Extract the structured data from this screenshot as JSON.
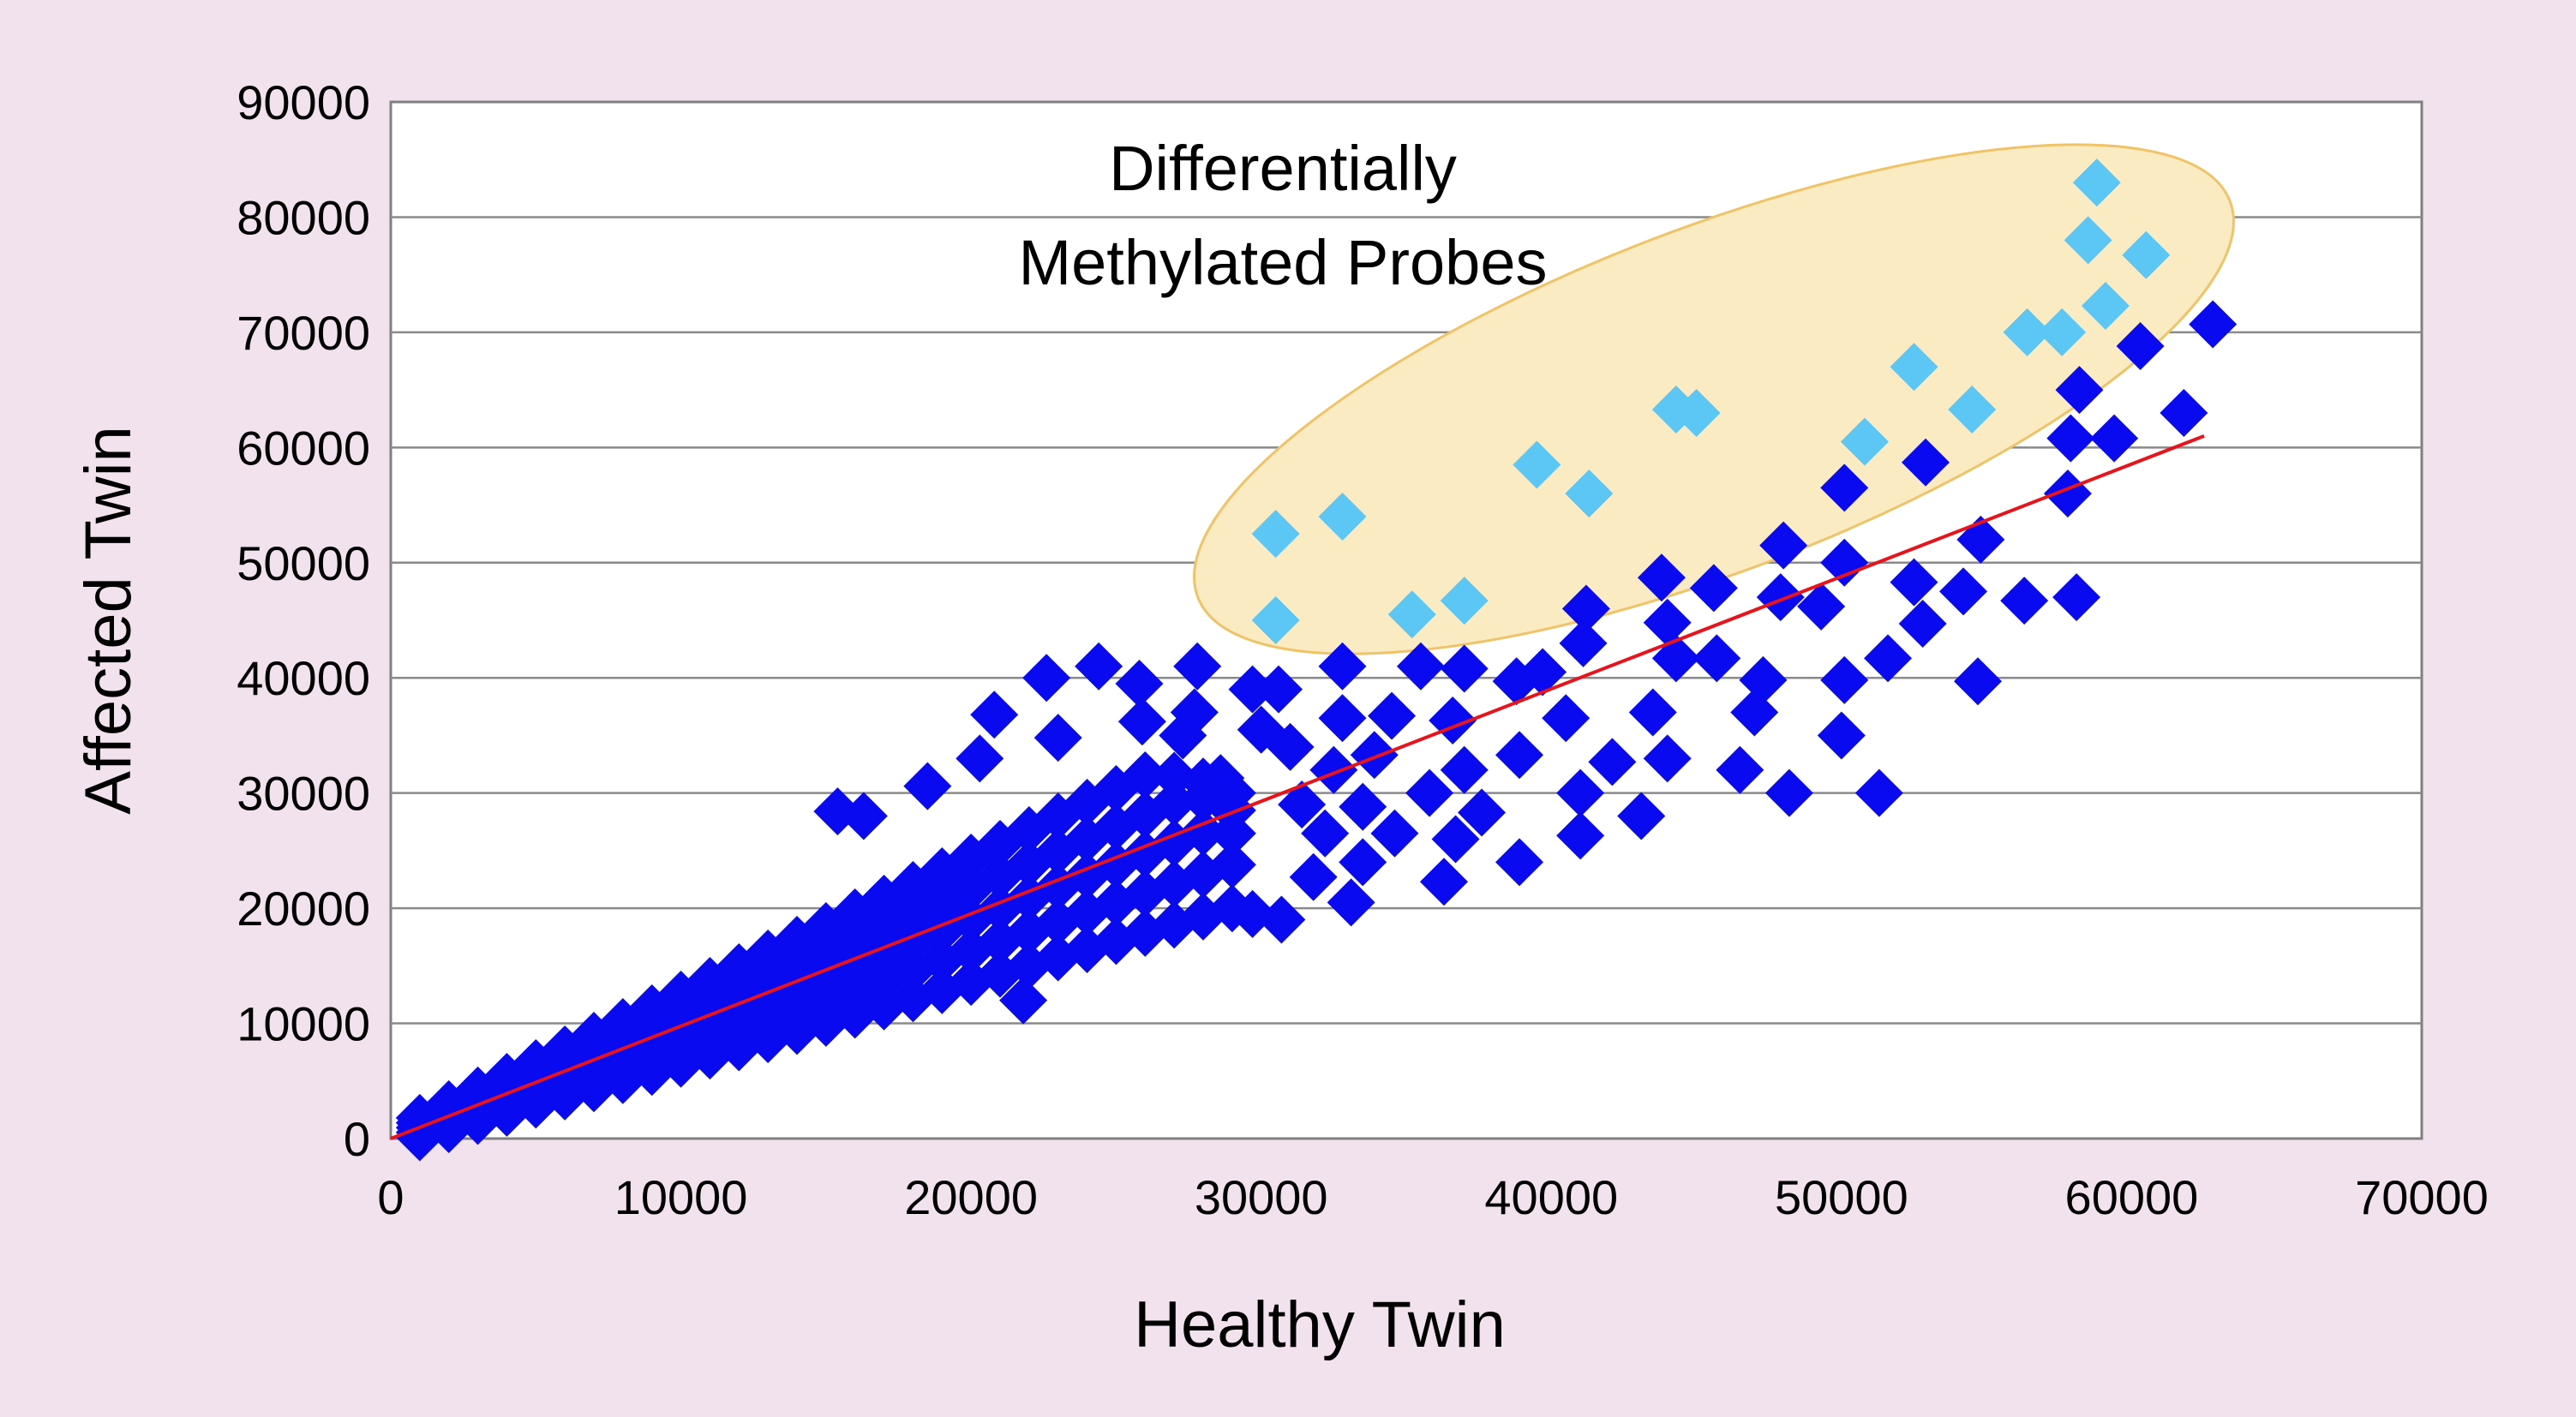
{
  "chart_data": {
    "type": "scatter",
    "title": "",
    "xlabel": "Healthy Twin",
    "ylabel": "Affected Twin",
    "xlim": [
      0,
      70000
    ],
    "ylim": [
      0,
      90000
    ],
    "xticks": [
      "0",
      "10000",
      "20000",
      "30000",
      "40000",
      "50000",
      "60000",
      "70000"
    ],
    "yticks": [
      "0",
      "10000",
      "20000",
      "30000",
      "40000",
      "50000",
      "60000",
      "70000",
      "80000",
      "90000"
    ],
    "grid": "horizontal",
    "annotation": [
      "Differentially",
      "Methylated Probes"
    ],
    "colors": {
      "probes": "#0A0AF0",
      "differential": "#5CC6F4",
      "fit_line": "#E8141C",
      "highlight_fill": "#FBEBC2",
      "highlight_stroke": "#F0C366",
      "background": "#F2E2EE"
    },
    "fit_line": [
      [
        0,
        0
      ],
      [
        62500,
        61000
      ]
    ],
    "series": [
      {
        "marker": "diamond",
        "color": "#0A0AF0",
        "points": [
          [
            1000,
            110
          ],
          [
            1000,
            530
          ],
          [
            1000,
            950
          ],
          [
            1000,
            1370
          ],
          [
            1000,
            1790
          ],
          [
            2000,
            820
          ],
          [
            2000,
            1360
          ],
          [
            2000,
            1900
          ],
          [
            2000,
            2440
          ],
          [
            2000,
            2980
          ],
          [
            3000,
            1530
          ],
          [
            3000,
            2190
          ],
          [
            3000,
            2850
          ],
          [
            3000,
            3510
          ],
          [
            3000,
            4170
          ],
          [
            4000,
            2240
          ],
          [
            4000,
            3020
          ],
          [
            4000,
            3800
          ],
          [
            4000,
            4580
          ],
          [
            4000,
            5360
          ],
          [
            5000,
            2950
          ],
          [
            5000,
            3850
          ],
          [
            5000,
            4750
          ],
          [
            5000,
            5650
          ],
          [
            5000,
            6550
          ],
          [
            6000,
            3660
          ],
          [
            6000,
            4680
          ],
          [
            6000,
            5700
          ],
          [
            6000,
            6720
          ],
          [
            6000,
            7740
          ],
          [
            7000,
            4370
          ],
          [
            7000,
            5510
          ],
          [
            7000,
            6650
          ],
          [
            7000,
            7790
          ],
          [
            7000,
            8930
          ],
          [
            8000,
            5080
          ],
          [
            8000,
            6340
          ],
          [
            8000,
            7600
          ],
          [
            8000,
            8860
          ],
          [
            8000,
            10120
          ],
          [
            9000,
            5790
          ],
          [
            9000,
            7170
          ],
          [
            9000,
            8550
          ],
          [
            9000,
            9930
          ],
          [
            9000,
            11310
          ],
          [
            10000,
            6500
          ],
          [
            10000,
            8000
          ],
          [
            10000,
            9500
          ],
          [
            10000,
            11000
          ],
          [
            10000,
            12500
          ],
          [
            11000,
            7210
          ],
          [
            11000,
            8830
          ],
          [
            11000,
            10450
          ],
          [
            11000,
            12070
          ],
          [
            11000,
            13690
          ],
          [
            12000,
            7920
          ],
          [
            12000,
            9660
          ],
          [
            12000,
            11400
          ],
          [
            12000,
            13140
          ],
          [
            12000,
            14880
          ],
          [
            13000,
            8630
          ],
          [
            13000,
            10490
          ],
          [
            13000,
            12350
          ],
          [
            13000,
            14210
          ],
          [
            13000,
            16070
          ],
          [
            14000,
            9340
          ],
          [
            14000,
            11320
          ],
          [
            14000,
            13300
          ],
          [
            14000,
            15280
          ],
          [
            14000,
            17260
          ],
          [
            15000,
            10050
          ],
          [
            15000,
            12150
          ],
          [
            15000,
            14250
          ],
          [
            15000,
            16350
          ],
          [
            15000,
            18450
          ],
          [
            16000,
            10760
          ],
          [
            16000,
            12980
          ],
          [
            16000,
            15200
          ],
          [
            16000,
            17420
          ],
          [
            16000,
            19640
          ],
          [
            17000,
            11470
          ],
          [
            17000,
            13810
          ],
          [
            17000,
            16150
          ],
          [
            17000,
            18490
          ],
          [
            17000,
            20830
          ],
          [
            18000,
            12180
          ],
          [
            18000,
            14640
          ],
          [
            18000,
            17100
          ],
          [
            18000,
            19560
          ],
          [
            18000,
            22020
          ],
          [
            19000,
            12890
          ],
          [
            19000,
            15470
          ],
          [
            19000,
            18050
          ],
          [
            19000,
            20630
          ],
          [
            19000,
            23210
          ],
          [
            20000,
            13600
          ],
          [
            20000,
            16300
          ],
          [
            20000,
            19000
          ],
          [
            20000,
            21700
          ],
          [
            20000,
            24400
          ],
          [
            21000,
            14310
          ],
          [
            21000,
            17130
          ],
          [
            21000,
            19950
          ],
          [
            21000,
            22770
          ],
          [
            21000,
            25590
          ],
          [
            22000,
            15020
          ],
          [
            22000,
            17960
          ],
          [
            22000,
            20900
          ],
          [
            22000,
            23840
          ],
          [
            22000,
            26780
          ],
          [
            23000,
            15730
          ],
          [
            23000,
            18790
          ],
          [
            23000,
            21850
          ],
          [
            23000,
            24910
          ],
          [
            23000,
            27970
          ],
          [
            24000,
            16440
          ],
          [
            24000,
            19620
          ],
          [
            24000,
            22800
          ],
          [
            24000,
            25980
          ],
          [
            24000,
            29160
          ],
          [
            25000,
            17150
          ],
          [
            25000,
            20450
          ],
          [
            25000,
            23750
          ],
          [
            25000,
            27050
          ],
          [
            25000,
            30350
          ],
          [
            26000,
            17860
          ],
          [
            26000,
            21280
          ],
          [
            26000,
            24700
          ],
          [
            26000,
            28120
          ],
          [
            26000,
            31540
          ],
          [
            27000,
            18570
          ],
          [
            27000,
            22110
          ],
          [
            27000,
            25650
          ],
          [
            27000,
            29190
          ],
          [
            27000,
            31500
          ],
          [
            28000,
            19280
          ],
          [
            28000,
            22940
          ],
          [
            28000,
            26600
          ],
          [
            28000,
            29500
          ],
          [
            28000,
            31000
          ],
          [
            29000,
            19990
          ],
          [
            29000,
            23770
          ],
          [
            29000,
            26500
          ],
          [
            29000,
            28500
          ],
          [
            29000,
            30000
          ],
          [
            62800,
            70700
          ],
          [
            60300,
            68800
          ],
          [
            61800,
            63000
          ],
          [
            59400,
            60800
          ],
          [
            58200,
            65000
          ],
          [
            57900,
            60800
          ],
          [
            57800,
            56000
          ],
          [
            58100,
            47000
          ],
          [
            56300,
            46700
          ],
          [
            54800,
            52000
          ],
          [
            54700,
            39700
          ],
          [
            54200,
            47500
          ],
          [
            52900,
            58700
          ],
          [
            52500,
            48300
          ],
          [
            52800,
            44700
          ],
          [
            51600,
            41700
          ],
          [
            51300,
            30000
          ],
          [
            50100,
            56500
          ],
          [
            50100,
            50000
          ],
          [
            50100,
            39800
          ],
          [
            50000,
            35000
          ],
          [
            49300,
            46200
          ],
          [
            48000,
            51500
          ],
          [
            47900,
            47000
          ],
          [
            48200,
            30000
          ],
          [
            47300,
            39800
          ],
          [
            47000,
            37000
          ],
          [
            46500,
            32000
          ],
          [
            45600,
            47800
          ],
          [
            45700,
            41700
          ],
          [
            44300,
            41700
          ],
          [
            44000,
            44800
          ],
          [
            43800,
            48700
          ],
          [
            44000,
            33000
          ],
          [
            43500,
            37000
          ],
          [
            43100,
            28000
          ],
          [
            42100,
            32700
          ],
          [
            41200,
            46000
          ],
          [
            41100,
            43000
          ],
          [
            41000,
            30000
          ],
          [
            41000,
            26300
          ],
          [
            40500,
            36500
          ],
          [
            39700,
            40500
          ],
          [
            38800,
            39700
          ],
          [
            38900,
            33300
          ],
          [
            38900,
            24000
          ],
          [
            37600,
            28300
          ],
          [
            37000,
            40800
          ],
          [
            37000,
            32000
          ],
          [
            36600,
            36300
          ],
          [
            36700,
            26000
          ],
          [
            36300,
            22300
          ],
          [
            35800,
            30000
          ],
          [
            35500,
            41000
          ],
          [
            34500,
            36700
          ],
          [
            34600,
            26500
          ],
          [
            33900,
            33300
          ],
          [
            33500,
            28800
          ],
          [
            33500,
            24000
          ],
          [
            33100,
            20500
          ],
          [
            32800,
            41000
          ],
          [
            32800,
            36500
          ],
          [
            32500,
            32000
          ],
          [
            32200,
            26500
          ],
          [
            31800,
            22700
          ],
          [
            31400,
            29000
          ],
          [
            31000,
            34000
          ],
          [
            30700,
            19000
          ],
          [
            30600,
            39000
          ],
          [
            30000,
            35500
          ],
          [
            29700,
            39000
          ],
          [
            29700,
            19500
          ],
          [
            28600,
            31300
          ],
          [
            27800,
            41000
          ],
          [
            27700,
            37000
          ],
          [
            27300,
            35000
          ],
          [
            25800,
            39500
          ],
          [
            25900,
            36200
          ],
          [
            24400,
            41000
          ],
          [
            22600,
            40000
          ],
          [
            23000,
            34800
          ],
          [
            20800,
            36800
          ],
          [
            20300,
            33000
          ],
          [
            18500,
            30600
          ],
          [
            15400,
            28400
          ],
          [
            16300,
            28000
          ],
          [
            21800,
            12000
          ]
        ]
      },
      {
        "marker": "diamond",
        "color": "#5CC6F4",
        "points": [
          [
            30500,
            52500
          ],
          [
            32800,
            54000
          ],
          [
            30500,
            45000
          ],
          [
            35200,
            45500
          ],
          [
            37000,
            46700
          ],
          [
            39500,
            58500
          ],
          [
            41300,
            56000
          ],
          [
            44300,
            63300
          ],
          [
            45000,
            63000
          ],
          [
            50800,
            60500
          ],
          [
            52500,
            67000
          ],
          [
            54500,
            63300
          ],
          [
            56400,
            70000
          ],
          [
            57600,
            70000
          ],
          [
            58500,
            78000
          ],
          [
            58800,
            83000
          ],
          [
            59100,
            72300
          ],
          [
            60500,
            76700
          ]
        ]
      }
    ]
  }
}
